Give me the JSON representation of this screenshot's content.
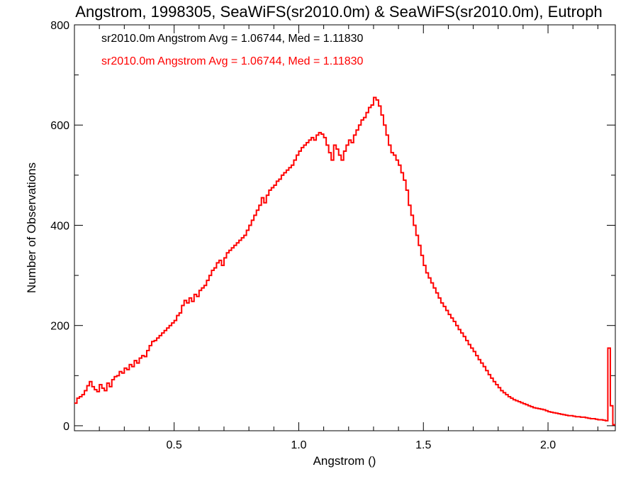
{
  "chart_data": {
    "type": "line",
    "style": "histogram-step",
    "title": "Angstrom, 1998305, SeaWiFS(sr2010.0m) & SeaWiFS(sr2010.0m), Eutroph",
    "xlabel": "Angstrom ()",
    "ylabel": "Number of Observations",
    "xlim": [
      0.1,
      2.27
    ],
    "ylim": [
      -10,
      800
    ],
    "x_ticks": [
      0.5,
      1.0,
      1.5,
      2.0
    ],
    "x_tick_labels": [
      "0.5",
      "1.0",
      "1.5",
      "2.0"
    ],
    "y_ticks": [
      0,
      200,
      400,
      600,
      800
    ],
    "y_tick_labels": [
      "0",
      "200",
      "400",
      "600",
      "800"
    ],
    "grid": false,
    "legend_position": "top-left",
    "annotations": [
      {
        "text": "sr2010.0m Angstrom Avg = 1.06744, Med = 1.11830",
        "color": "#000000"
      },
      {
        "text": "sr2010.0m Angstrom Avg = 1.06744, Med = 1.11830",
        "color": "#ff0000"
      }
    ],
    "series": [
      {
        "color": "#ff0000",
        "bin_start": 0.1,
        "bin_width": 0.01,
        "values": [
          45,
          55,
          58,
          62,
          70,
          80,
          88,
          78,
          72,
          68,
          82,
          75,
          70,
          85,
          78,
          92,
          98,
          100,
          108,
          105,
          115,
          112,
          122,
          118,
          130,
          125,
          135,
          140,
          138,
          150,
          160,
          168,
          170,
          175,
          180,
          185,
          190,
          195,
          200,
          205,
          210,
          220,
          225,
          240,
          250,
          245,
          255,
          248,
          262,
          258,
          270,
          275,
          280,
          290,
          300,
          310,
          315,
          325,
          330,
          320,
          335,
          345,
          350,
          355,
          360,
          365,
          370,
          375,
          380,
          390,
          400,
          410,
          420,
          430,
          440,
          455,
          445,
          460,
          470,
          475,
          480,
          488,
          492,
          500,
          505,
          510,
          515,
          520,
          530,
          540,
          548,
          555,
          560,
          565,
          570,
          575,
          570,
          580,
          585,
          582,
          575,
          560,
          545,
          530,
          560,
          552,
          540,
          530,
          548,
          560,
          570,
          565,
          580,
          590,
          600,
          610,
          615,
          625,
          635,
          640,
          655,
          650,
          638,
          620,
          600,
          580,
          560,
          545,
          540,
          530,
          520,
          505,
          490,
          470,
          440,
          420,
          400,
          380,
          360,
          340,
          320,
          305,
          295,
          285,
          275,
          265,
          255,
          245,
          238,
          230,
          222,
          215,
          208,
          200,
          192,
          185,
          178,
          170,
          162,
          155,
          148,
          140,
          132,
          125,
          118,
          110,
          102,
          95,
          88,
          82,
          76,
          70,
          66,
          62,
          58,
          55,
          52,
          50,
          48,
          46,
          44,
          42,
          40,
          38,
          36,
          35,
          34,
          33,
          32,
          30,
          28,
          27,
          26,
          25,
          24,
          23,
          22,
          21,
          20,
          20,
          19,
          18,
          18,
          17,
          17,
          16,
          15,
          14,
          14,
          13,
          12,
          12,
          11,
          10,
          155,
          40,
          2,
          0,
          0,
          0,
          0,
          0,
          0,
          0,
          0,
          0,
          0
        ]
      }
    ]
  }
}
